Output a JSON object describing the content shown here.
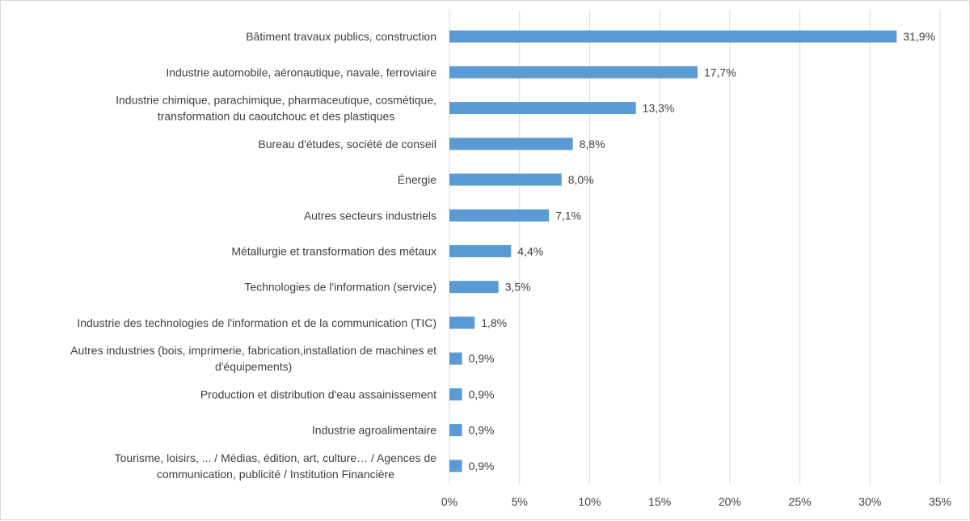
{
  "chart_data": {
    "type": "bar",
    "orientation": "horizontal",
    "title": "",
    "xlabel": "",
    "ylabel": "",
    "xlim": [
      0,
      35
    ],
    "grid": true,
    "legend": "none",
    "bar_color": "#5b9bd5",
    "grid_color": "#d9d9d9",
    "text_color": "#404040",
    "ticks": [
      "0%",
      "5%",
      "10%",
      "15%",
      "20%",
      "25%",
      "30%",
      "35%"
    ],
    "tick_values": [
      0,
      5,
      10,
      15,
      20,
      25,
      30,
      35
    ],
    "categories": [
      [
        "Bâtiment travaux publics, construction"
      ],
      [
        "Industrie automobile, aéronautique, navale, ferroviaire"
      ],
      [
        "Industrie chimique, parachimique, pharmaceutique, cosmétique,",
        "transformation du caoutchouc et des plastiques"
      ],
      [
        "Bureau d'études, société de conseil"
      ],
      [
        "Énergie"
      ],
      [
        "Autres secteurs industriels"
      ],
      [
        "Métallurgie et transformation des métaux"
      ],
      [
        "Technologies de l'information (service)"
      ],
      [
        "Industrie des technologies de l'information et de la communication (TIC)"
      ],
      [
        "Autres industries (bois, imprimerie, fabrication,installation de machines et",
        "d'équipements)"
      ],
      [
        "Production et distribution d'eau assainissement"
      ],
      [
        "Industrie agroalimentaire"
      ],
      [
        "Tourisme, loisirs, ... / Médias, édition, art, culture… / Agences de",
        "communication, publicité / Institution Financière"
      ]
    ],
    "values": [
      31.9,
      17.7,
      13.3,
      8.8,
      8.0,
      7.1,
      4.4,
      3.5,
      1.8,
      0.9,
      0.9,
      0.9,
      0.9
    ],
    "value_labels": [
      "31,9%",
      "17,7%",
      "13,3%",
      "8,8%",
      "8,0%",
      "7,1%",
      "4,4%",
      "3,5%",
      "1,8%",
      "0,9%",
      "0,9%",
      "0,9%",
      "0,9%"
    ]
  }
}
